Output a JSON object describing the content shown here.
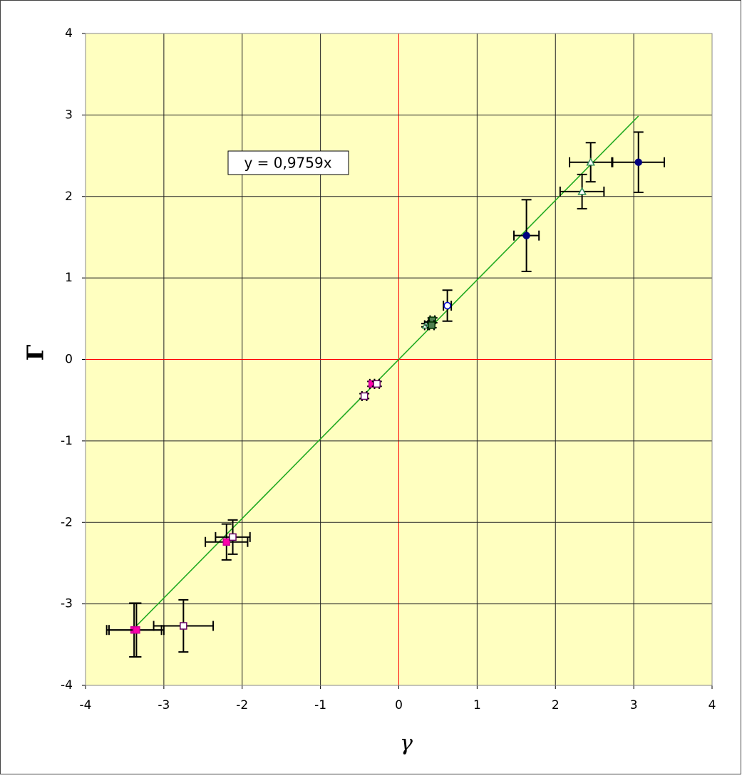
{
  "chart_data": {
    "type": "scatter",
    "x_label": "γ",
    "y_label": "Γ",
    "xlim": [
      -4,
      4
    ],
    "ylim": [
      -4,
      4
    ],
    "xticks": [
      -4,
      -3,
      -2,
      -1,
      0,
      1,
      2,
      3,
      4
    ],
    "yticks": [
      -4,
      -3,
      -2,
      -1,
      0,
      1,
      2,
      3,
      4
    ],
    "grid": true,
    "grid_color": "#222222",
    "zero_line_color": "#ff0000",
    "plot_background": "#ffffc0",
    "series": [
      {
        "marker": "circle",
        "color": "#000080",
        "fill": "#000080",
        "x": [
          1.63,
          3.06
        ],
        "y": [
          1.52,
          2.42
        ],
        "xerr": [
          0.16,
          0.33
        ],
        "yerr": [
          0.44,
          0.37
        ]
      },
      {
        "marker": "triangle",
        "color": "#2e8b57",
        "fill": "#ffffff",
        "x": [
          2.45,
          2.34,
          0.35,
          0.4
        ],
        "y": [
          2.42,
          2.06,
          0.42,
          0.44
        ],
        "xerr": [
          0.27,
          0.28,
          0.02,
          0.02
        ],
        "yerr": [
          0.24,
          0.21,
          0.02,
          0.02
        ]
      },
      {
        "marker": "circle",
        "color": "#0000cc",
        "fill": "#ffffff",
        "x": [
          0.62
        ],
        "y": [
          0.66
        ],
        "xerr": [
          0.05
        ],
        "yerr": [
          0.19
        ]
      },
      {
        "marker": "square",
        "color": "#003300",
        "fill": "#4f7f4f",
        "x": [
          0.43,
          0.42
        ],
        "y": [
          0.48,
          0.42
        ],
        "xerr": [
          0.03,
          0.03
        ],
        "yerr": [
          0.03,
          0.03
        ]
      },
      {
        "marker": "square",
        "color": "#cc0099",
        "fill": "#ff00aa",
        "x": [
          -3.38,
          -3.35,
          -2.2,
          -0.34
        ],
        "y": [
          -3.32,
          -3.32,
          -2.24,
          -0.3
        ],
        "xerr": [
          0.35,
          0.35,
          0.27,
          0.03
        ],
        "yerr": [
          0.33,
          0.33,
          0.22,
          0.03
        ]
      },
      {
        "marker": "square",
        "color": "#660066",
        "fill": "#ffffff",
        "x": [
          -2.75,
          -2.12,
          -0.28,
          -0.44
        ],
        "y": [
          -3.27,
          -2.18,
          -0.3,
          -0.45
        ],
        "xerr": [
          0.38,
          0.22,
          0.03,
          0.03
        ],
        "yerr": [
          0.32,
          0.21,
          0.03,
          0.03
        ]
      }
    ],
    "trendline": {
      "label": "y = 0,9759x",
      "slope": 0.9759,
      "x": [
        -3.35,
        3.06
      ],
      "color": "#22aa22"
    }
  }
}
